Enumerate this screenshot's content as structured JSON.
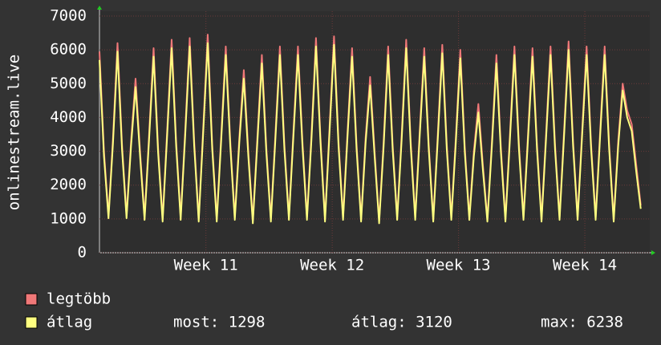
{
  "chart_data": {
    "type": "line",
    "y_label": "onlinestream.live",
    "x": [
      0,
      0.25,
      0.5,
      0.75,
      1,
      1.25,
      1.5,
      1.75,
      2,
      2.25,
      2.5,
      2.75,
      3,
      3.25,
      3.5,
      3.75,
      4,
      4.25,
      4.5,
      4.75,
      5,
      5.25,
      5.5,
      5.75,
      6,
      6.25,
      6.5,
      6.75,
      7,
      7.25,
      7.5,
      7.75,
      8,
      8.25,
      8.5,
      8.75,
      9,
      9.25,
      9.5,
      9.75,
      10,
      10.25,
      10.5,
      10.75,
      11,
      11.25,
      11.5,
      11.75,
      12,
      12.25,
      12.5,
      12.75,
      13,
      13.25,
      13.5,
      13.75,
      14,
      14.25,
      14.5,
      14.75,
      15,
      15.25,
      15.5,
      15.75,
      16,
      16.25,
      16.5,
      16.75,
      17,
      17.25,
      17.5,
      17.75,
      18,
      18.25,
      18.5,
      18.75,
      19,
      19.25,
      19.5,
      19.75,
      20,
      20.25,
      20.5,
      20.75,
      21,
      21.25,
      21.5,
      21.75,
      22,
      22.25,
      22.5,
      22.75,
      23,
      23.25,
      23.5,
      23.75,
      24,
      24.25,
      24.5,
      24.75,
      25,
      25.25,
      25.5,
      25.75,
      26,
      26.25,
      26.5,
      26.75,
      27,
      27.25,
      27.5,
      27.75,
      28,
      28.25,
      28.5,
      28.75,
      29,
      29.25,
      29.5,
      29.75,
      30
    ],
    "series": [
      {
        "name": "legtöbb",
        "color": "#f07878",
        "values": [
          5950,
          3000,
          1100,
          3400,
          6200,
          3200,
          1100,
          3300,
          5150,
          3000,
          1050,
          3500,
          6050,
          3100,
          1000,
          3600,
          6300,
          3300,
          1050,
          3600,
          6350,
          3300,
          1000,
          3700,
          6450,
          3200,
          1000,
          3500,
          6100,
          3300,
          1050,
          3400,
          5400,
          3000,
          950,
          3400,
          5850,
          3100,
          1000,
          3500,
          6100,
          3200,
          1050,
          3600,
          6100,
          3300,
          1050,
          3500,
          6350,
          3400,
          1000,
          3700,
          6400,
          3300,
          1050,
          3600,
          6050,
          3200,
          1000,
          3400,
          5200,
          3000,
          950,
          3300,
          6100,
          3200,
          1050,
          3500,
          6300,
          3300,
          1050,
          3600,
          6050,
          3200,
          1000,
          3500,
          6150,
          3200,
          1050,
          3400,
          6000,
          3100,
          1050,
          3000,
          4400,
          2600,
          1000,
          3300,
          5850,
          3100,
          1000,
          3500,
          6100,
          3200,
          1050,
          3500,
          6050,
          3200,
          1000,
          3500,
          6100,
          3200,
          1050,
          3600,
          6250,
          3300,
          1050,
          3600,
          6100,
          3200,
          1050,
          3600,
          6100,
          3200,
          1000,
          3300,
          5000,
          4200,
          3800,
          2600,
          1400
        ]
      },
      {
        "name": "átlag",
        "color": "#ffff80",
        "values": [
          5700,
          2850,
          1020,
          3250,
          5950,
          3050,
          1020,
          3150,
          4900,
          2850,
          970,
          3350,
          5800,
          2950,
          920,
          3450,
          6050,
          3150,
          970,
          3450,
          6100,
          3150,
          920,
          3550,
          6200,
          3050,
          920,
          3350,
          5850,
          3150,
          970,
          3250,
          5150,
          2850,
          870,
          3250,
          5600,
          2950,
          920,
          3350,
          5850,
          3050,
          970,
          3450,
          5850,
          3150,
          970,
          3350,
          6100,
          3250,
          920,
          3550,
          6150,
          3150,
          970,
          3450,
          5800,
          3050,
          920,
          3250,
          4950,
          2850,
          870,
          3150,
          5850,
          3050,
          970,
          3350,
          6050,
          3150,
          970,
          3450,
          5800,
          3050,
          920,
          3350,
          5900,
          3050,
          970,
          3250,
          5750,
          2950,
          970,
          2850,
          4150,
          2450,
          920,
          3150,
          5600,
          2950,
          920,
          3350,
          5850,
          3050,
          970,
          3350,
          5800,
          3050,
          920,
          3350,
          5850,
          3050,
          970,
          3450,
          6000,
          3150,
          970,
          3450,
          5850,
          3050,
          970,
          3450,
          5850,
          3050,
          920,
          3150,
          4800,
          4000,
          3600,
          2400,
          1298
        ]
      }
    ],
    "stats": [
      "most: 1298",
      "átlag: 3120",
      "max: 6238"
    ],
    "xlim": [
      0,
      30.5
    ],
    "xticks": [
      {
        "value": 5.9,
        "label": "Week 11"
      },
      {
        "value": 12.9,
        "label": "Week 12"
      },
      {
        "value": 19.9,
        "label": "Week 13"
      },
      {
        "value": 26.9,
        "label": "Week 14"
      }
    ],
    "ylim": [
      0,
      7000
    ],
    "yticks": [
      0,
      1000,
      2000,
      3000,
      4000,
      5000,
      6000,
      7000
    ],
    "grid": true
  }
}
